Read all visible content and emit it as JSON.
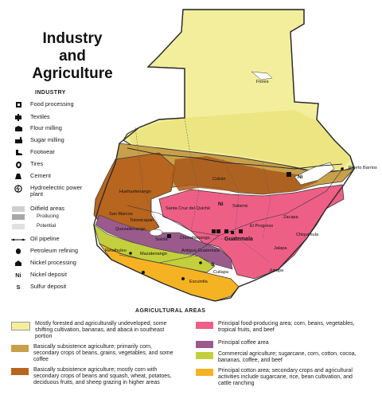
{
  "title": "Industry and Agriculture",
  "industry_legend": {
    "heading": "INDUSTRY",
    "items": [
      {
        "label": "Food processing",
        "icon": "food-processing-icon"
      },
      {
        "label": "Textiles",
        "icon": "textiles-icon"
      },
      {
        "label": "Flour milling",
        "icon": "flour-milling-icon"
      },
      {
        "label": "Sugar milling",
        "icon": "sugar-milling-icon"
      },
      {
        "label": "Footwear",
        "icon": "footwear-icon"
      },
      {
        "label": "Tires",
        "icon": "tires-icon"
      },
      {
        "label": "Cement",
        "icon": "cement-icon"
      },
      {
        "label": "Hydroelectric power plant",
        "icon": "hydroelectric-icon"
      },
      {
        "label": "Oilfield areas",
        "icon": "oilfield-icon"
      },
      {
        "label": "Oil pipeline",
        "icon": "oil-pipeline-icon"
      },
      {
        "label": "Petroleum refining",
        "icon": "petroleum-refining-icon"
      },
      {
        "label": "Nickel processing",
        "icon": "nickel-processing-icon"
      },
      {
        "label": "Nickel deposit",
        "icon": "nickel-deposit-icon"
      },
      {
        "label": "Sulfur deposit",
        "icon": "sulfur-deposit-icon"
      }
    ],
    "oilfield_producing": "Producing",
    "oilfield_potential": "Potential",
    "nickel_deposit_symbol": "Ni",
    "sulfur_deposit_symbol": "S"
  },
  "agricultural_legend": {
    "heading": "AGRICULTURAL AREAS",
    "items": [
      {
        "text": "Mostly forested and agriculturally undeveloped; some shifting cultivation, bananas, and abacá in southeast portion",
        "color": "#f3ee9c"
      },
      {
        "text": "Basically subsistence agriculture; primarily corn, secondary crops of beans, grains, vegetables, and some coffee",
        "color": "#c8a04a"
      },
      {
        "text": "Basically subsistence agriculture; mostly corn with secondary crops of beans and squash, wheat, potatoes, deciduous fruits, and sheep grazing in higher areas",
        "color": "#b8651f"
      },
      {
        "text": "Principal food-producing area; corn, beans, vegetables, tropical fruits, and beef",
        "color": "#ee5f86"
      },
      {
        "text": "Principal coffee area",
        "color": "#9a5b8c"
      },
      {
        "text": "Commercial agriculture; sugarcane, corn, cotton, cocoa, bananas, coffee, and beef",
        "color": "#c3cf3c"
      },
      {
        "text": "Principal cotton area; secondary crops and agricultural activities include sugarcane, rice, bean cultivation, and cattle ranching",
        "color": "#f5b323"
      }
    ]
  },
  "places": {
    "flores": "Flores",
    "coban": "Cobán",
    "puerto_barrios": "Puerto Barrios",
    "huehuetenango": "Huehuetenango",
    "santa_cruz": "Santa Cruz del Quiché",
    "salama": "Salamá",
    "zacapa": "Zacapa",
    "san_marcos": "San Marcos",
    "totonicapan": "Totonicapán",
    "quezaltenango": "Quezaltenango",
    "solola": "Sololá",
    "chimaltenango": "Chimaltenango",
    "el_progreso": "El Progreso",
    "chiquimula": "Chiquimula",
    "guatemala": "Guatemala",
    "retalhuleu": "Retalhuleu",
    "mazatenango": "Mazatenango",
    "antigua": "Antigua Guatemala",
    "jalapa": "Jalapa",
    "jutiapa": "Jutiapa",
    "cuilapa": "Cuilapa",
    "escuintla": "Escuintla"
  },
  "map_symbols": {
    "nickel": "Ni",
    "sulfur": "S"
  },
  "colors": {
    "forest": "#f3ee9c",
    "subsistence_corn": "#c8a04a",
    "subsistence_highland": "#b8651f",
    "food_producing": "#ee5f86",
    "coffee": "#9a5b8c",
    "commercial": "#c3cf3c",
    "cotton": "#f5b323",
    "water": "#ffffff",
    "border": "#3a3a3a"
  }
}
